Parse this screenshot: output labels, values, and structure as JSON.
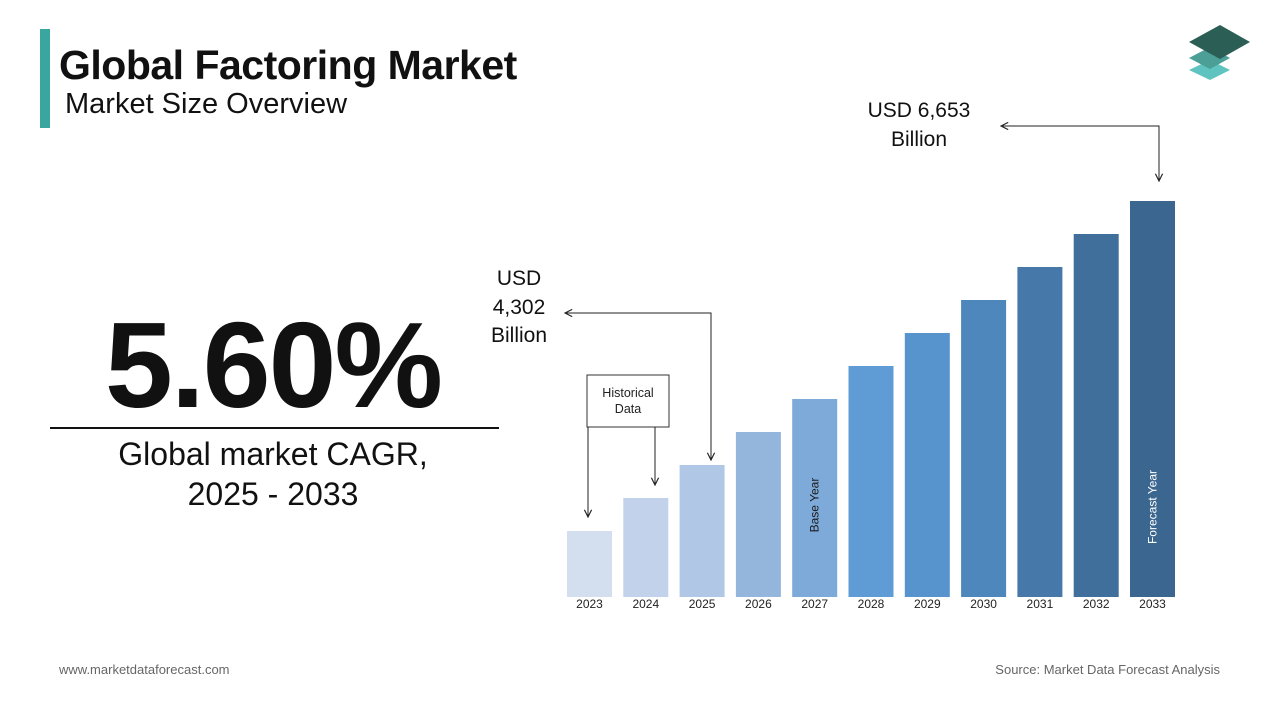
{
  "header": {
    "title": "Global Factoring Market",
    "subtitle": "Market Size Overview"
  },
  "logo": {
    "icon": "stacked-layers-logo-icon"
  },
  "cagr": {
    "value": "5.60%",
    "label_line1": "Global market CAGR,",
    "label_line2": "2025 - 2033"
  },
  "annotations": {
    "start": {
      "line1": "USD",
      "line2": "4,302",
      "line3": "Billion"
    },
    "end": {
      "line1": "USD 6,653",
      "line2": "Billion"
    },
    "historical": {
      "line1": "Historical",
      "line2": "Data"
    }
  },
  "footer": {
    "website": "www.marketdataforecast.com",
    "source": "Source: Market Data Forecast Analysis"
  },
  "chart_data": {
    "type": "bar",
    "categories": [
      "2023",
      "2024",
      "2025",
      "2026",
      "2027",
      "2028",
      "2029",
      "2030",
      "2031",
      "2032",
      "2033"
    ],
    "values": [
      1.0,
      1.5,
      2.0,
      2.5,
      3.0,
      3.5,
      4.0,
      4.5,
      5.0,
      5.5,
      6.0
    ],
    "ylim": [
      0,
      6.0
    ],
    "grid": false,
    "bar_colors": [
      "#d3dfef",
      "#c1d2ea",
      "#b0c8e6",
      "#94b6dd",
      "#7eaad9",
      "#5f9cd6",
      "#5793cc",
      "#4e87bc",
      "#4679a9",
      "#416f9b",
      "#3b6690"
    ],
    "bar_labels": {
      "2027": "Base Year",
      "2033": "Forecast Year"
    },
    "bar_label_colors": {
      "2027": "#1a1a1a",
      "2033": "#ffffff"
    }
  }
}
